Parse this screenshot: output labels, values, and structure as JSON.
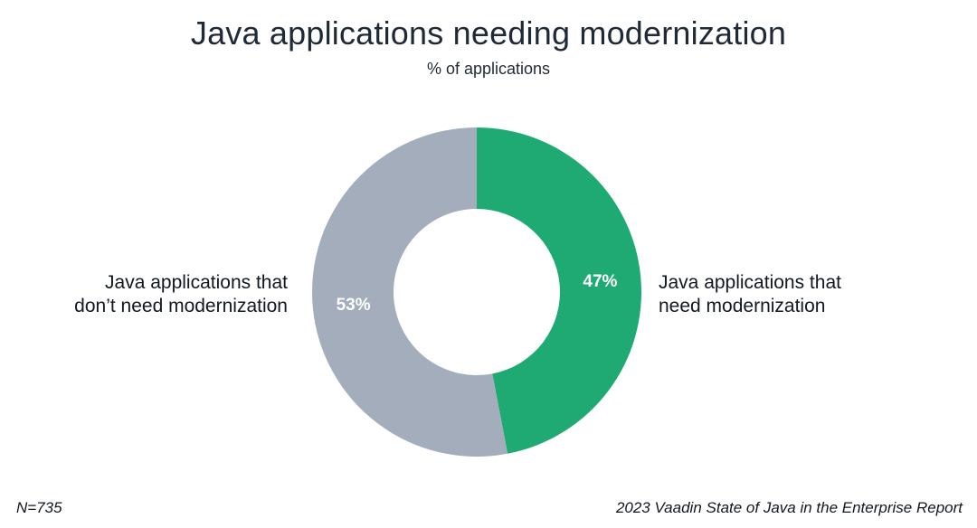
{
  "chart_data": {
    "type": "pie",
    "title": "Java applications needing modernization",
    "subtitle": "% of applications",
    "categories": [
      "Java applications that need modernization",
      "Java applications that don’t need modernization"
    ],
    "values": [
      47,
      53
    ],
    "value_labels": [
      "47%",
      "53%"
    ],
    "colors": [
      "#1faa74",
      "#a3adbc"
    ],
    "legend": "none",
    "donut": true
  },
  "labels": {
    "need_line1": "Java applications that",
    "need_line2": "need modernization",
    "not_need_line1": "Java applications that",
    "not_need_line2": "don’t need modernization"
  },
  "footer": {
    "sample": "N=735",
    "source": "2023 Vaadin State of Java in the Enterprise Report"
  }
}
